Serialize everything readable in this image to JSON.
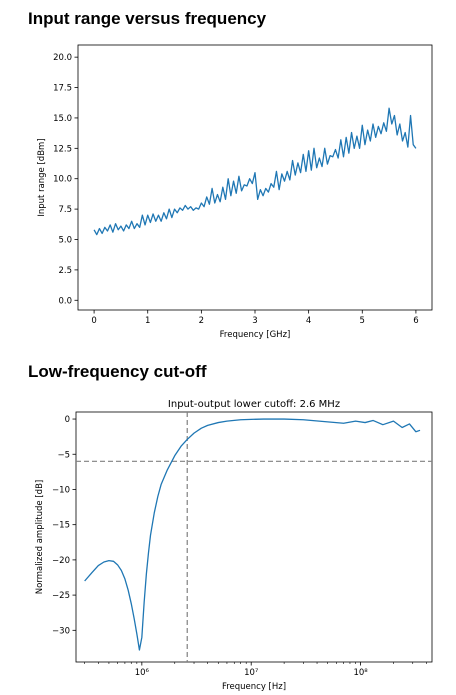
{
  "sections": {
    "range_title": "Input range versus frequency",
    "cutoff_title": "Low-frequency cut-off"
  },
  "colors": {
    "series": "#1f77b4",
    "reference": "#808080"
  },
  "chart_data": [
    {
      "type": "line",
      "title": "",
      "xlabel": "Frequency [GHz]",
      "ylabel": "Input range [dBm]",
      "xlim": [
        -0.3,
        6.3
      ],
      "ylim": [
        -0.8,
        21.0
      ],
      "xticks": [
        0,
        1,
        2,
        3,
        4,
        5,
        6
      ],
      "xtick_labels": [
        "0",
        "1",
        "2",
        "3",
        "4",
        "5",
        "6"
      ],
      "yticks": [
        0.0,
        2.5,
        5.0,
        7.5,
        10.0,
        12.5,
        15.0,
        17.5,
        20.0
      ],
      "ytick_labels": [
        "0.0",
        "2.5",
        "5.0",
        "7.5",
        "10.0",
        "12.5",
        "15.0",
        "17.5",
        "20.0"
      ],
      "grid": false,
      "series": [
        {
          "x": [
            0.0,
            0.05,
            0.1,
            0.15,
            0.2,
            0.25,
            0.3,
            0.35,
            0.4,
            0.45,
            0.5,
            0.55,
            0.6,
            0.65,
            0.7,
            0.75,
            0.8,
            0.85,
            0.9,
            0.95,
            1.0,
            1.05,
            1.1,
            1.15,
            1.2,
            1.25,
            1.3,
            1.35,
            1.4,
            1.45,
            1.5,
            1.55,
            1.6,
            1.65,
            1.7,
            1.75,
            1.8,
            1.85,
            1.9,
            1.95,
            2.0,
            2.05,
            2.1,
            2.15,
            2.2,
            2.25,
            2.3,
            2.35,
            2.4,
            2.45,
            2.5,
            2.55,
            2.6,
            2.65,
            2.7,
            2.75,
            2.8,
            2.85,
            2.9,
            2.95,
            3.0,
            3.05,
            3.1,
            3.15,
            3.2,
            3.25,
            3.3,
            3.35,
            3.4,
            3.45,
            3.5,
            3.55,
            3.6,
            3.65,
            3.7,
            3.75,
            3.8,
            3.85,
            3.9,
            3.95,
            4.0,
            4.05,
            4.1,
            4.15,
            4.2,
            4.25,
            4.3,
            4.35,
            4.4,
            4.45,
            4.5,
            4.55,
            4.6,
            4.65,
            4.7,
            4.75,
            4.8,
            4.85,
            4.9,
            4.95,
            5.0,
            5.05,
            5.1,
            5.15,
            5.2,
            5.25,
            5.3,
            5.35,
            5.4,
            5.45,
            5.5,
            5.55,
            5.6,
            5.65,
            5.7,
            5.75,
            5.8,
            5.85,
            5.9,
            5.95,
            6.0
          ],
          "y": [
            5.8,
            5.4,
            5.9,
            5.5,
            6.0,
            5.7,
            6.2,
            5.6,
            6.3,
            5.8,
            6.1,
            5.7,
            6.2,
            5.9,
            6.5,
            5.9,
            6.3,
            6.0,
            7.0,
            6.2,
            7.0,
            6.4,
            7.1,
            6.5,
            7.0,
            6.5,
            7.2,
            6.7,
            7.5,
            6.8,
            7.5,
            7.2,
            7.6,
            7.4,
            7.8,
            7.5,
            7.7,
            7.4,
            7.6,
            7.5,
            8.0,
            7.7,
            8.5,
            7.9,
            9.2,
            8.0,
            8.7,
            8.1,
            9.3,
            8.3,
            10.0,
            8.6,
            9.8,
            8.8,
            10.2,
            9.0,
            9.5,
            9.4,
            10.0,
            9.6,
            10.5,
            8.3,
            9.1,
            8.6,
            9.2,
            8.9,
            9.6,
            9.3,
            10.6,
            9.1,
            10.4,
            9.8,
            10.6,
            9.9,
            11.5,
            10.3,
            11.3,
            10.5,
            12.0,
            10.6,
            12.3,
            10.7,
            12.5,
            10.9,
            11.7,
            11.0,
            12.5,
            11.2,
            11.9,
            11.8,
            12.4,
            11.7,
            13.2,
            11.8,
            13.4,
            12.1,
            13.8,
            12.5,
            13.5,
            12.5,
            14.4,
            12.8,
            14.0,
            13.1,
            14.5,
            13.4,
            14.3,
            13.7,
            14.6,
            13.9,
            15.8,
            14.5,
            15.2,
            13.6,
            14.5,
            13.1,
            13.8,
            12.6,
            15.2,
            12.8,
            12.5
          ]
        }
      ]
    },
    {
      "type": "line",
      "title": "Input-output lower cutoff: 2.6 MHz",
      "xlabel": "Frequency [Hz]",
      "ylabel": "Normalized amplitude [dB]",
      "xscale": "log",
      "xlim": [
        250000,
        450000000
      ],
      "ylim": [
        -34.5,
        1.0
      ],
      "xticks": [
        1000000,
        10000000,
        100000000
      ],
      "xtick_labels": [
        "10⁶",
        "10⁷",
        "10⁸"
      ],
      "yticks": [
        0,
        -5,
        -10,
        -15,
        -20,
        -25,
        -30
      ],
      "ytick_labels": [
        "0",
        "−5",
        "−10",
        "−15",
        "−20",
        "−25",
        "−30"
      ],
      "grid": false,
      "series": [
        {
          "x": [
            300000,
            350000,
            400000,
            450000,
            500000,
            550000,
            600000,
            650000,
            700000,
            750000,
            800000,
            850000,
            900000,
            950000,
            1000000,
            1050000,
            1100000,
            1150000,
            1200000,
            1300000,
            1400000,
            1500000,
            1700000,
            2000000,
            2300000,
            2600000,
            3000000,
            3500000,
            4000000,
            5000000,
            6000000,
            8000000,
            10000000,
            13000000,
            20000000,
            30000000,
            50000000,
            70000000,
            90000000,
            110000000,
            130000000,
            160000000,
            200000000,
            240000000,
            280000000,
            320000000,
            350000000
          ],
          "y": [
            -23.0,
            -21.8,
            -20.8,
            -20.3,
            -20.1,
            -20.2,
            -20.7,
            -21.5,
            -22.7,
            -24.3,
            -26.2,
            -28.3,
            -30.5,
            -32.8,
            -31.0,
            -26.0,
            -22.0,
            -19.0,
            -16.5,
            -13.3,
            -11.0,
            -9.3,
            -7.3,
            -5.2,
            -3.8,
            -2.9,
            -2.0,
            -1.3,
            -0.9,
            -0.5,
            -0.3,
            -0.1,
            -0.05,
            0.0,
            0.0,
            -0.1,
            -0.4,
            -0.6,
            -0.3,
            -0.5,
            -0.2,
            -0.8,
            -0.3,
            -1.2,
            -0.7,
            -1.8,
            -1.6
          ]
        }
      ],
      "reference_lines": {
        "vertical_x": 2600000,
        "horizontal_y": -6
      }
    }
  ]
}
